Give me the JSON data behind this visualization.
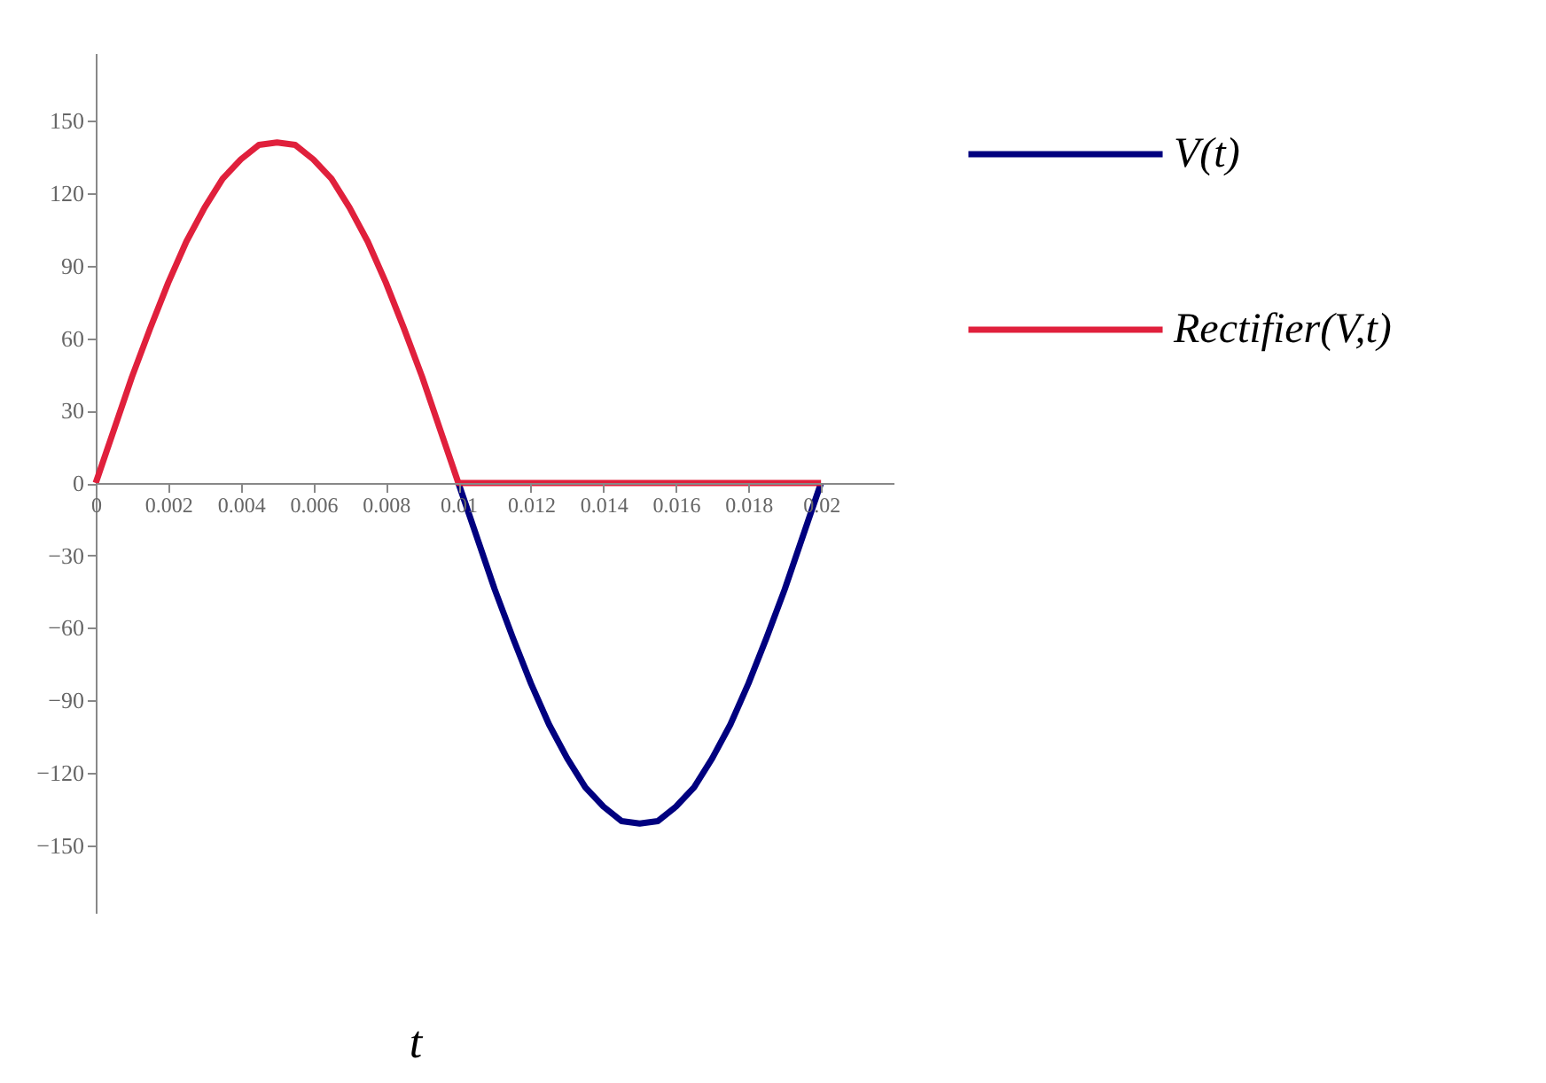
{
  "chart_data": {
    "type": "line",
    "xlabel": "t",
    "x": [
      0,
      0.0005,
      0.001,
      0.0015,
      0.002,
      0.0025,
      0.003,
      0.0035,
      0.004,
      0.0045,
      0.005,
      0.0055,
      0.006,
      0.0065,
      0.007,
      0.0075,
      0.008,
      0.0085,
      0.009,
      0.0095,
      0.01,
      0.0105,
      0.011,
      0.0115,
      0.012,
      0.0125,
      0.013,
      0.0135,
      0.014,
      0.0145,
      0.015,
      0.0155,
      0.016,
      0.0165,
      0.017,
      0.0175,
      0.018,
      0.0185,
      0.019,
      0.0195,
      0.02
    ],
    "series": [
      {
        "name": "V(t)",
        "color": "#00007f",
        "values": [
          null,
          null,
          null,
          null,
          null,
          null,
          null,
          null,
          null,
          null,
          null,
          null,
          null,
          null,
          null,
          null,
          null,
          null,
          null,
          null,
          0,
          -22,
          -44,
          -64,
          -83,
          -100,
          -114,
          -126,
          -134,
          -140,
          -141,
          -140,
          -134,
          -126,
          -114,
          -100,
          -83,
          -64,
          -44,
          -22,
          0
        ]
      },
      {
        "name": "Rectifier(V,t)",
        "color": "#e0203c",
        "values": [
          0,
          22,
          44,
          64,
          83,
          100,
          114,
          126,
          134,
          140,
          141,
          140,
          134,
          126,
          114,
          100,
          83,
          64,
          44,
          22,
          0,
          0,
          0,
          0,
          0,
          0,
          0,
          0,
          0,
          0,
          0,
          0,
          0,
          0,
          0,
          0,
          0,
          0,
          0,
          0,
          0
        ]
      }
    ],
    "xlim": [
      0,
      0.022
    ],
    "xticks": [
      0,
      0.002,
      0.004,
      0.006,
      0.008,
      0.01,
      0.012,
      0.014,
      0.016,
      0.018,
      0.02
    ],
    "ylim": [
      -178,
      178
    ],
    "yticks": [
      -150,
      -120,
      -90,
      -60,
      -30,
      0,
      30,
      60,
      90,
      120,
      150
    ],
    "grid": false,
    "legend": "right",
    "marker": "none",
    "line_style": "solid"
  }
}
